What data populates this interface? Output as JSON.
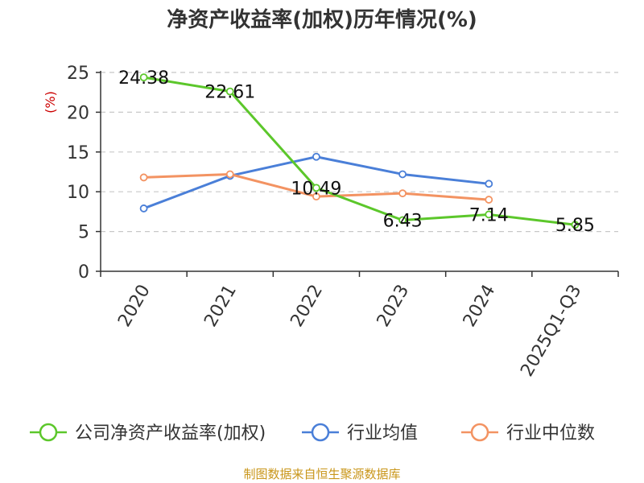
{
  "chart_data": {
    "type": "line",
    "title": "净资产收益率(加权)历年情况(%)",
    "ylabel": "(%)",
    "categories": [
      "2020",
      "2021",
      "2022",
      "2023",
      "2024",
      "2025Q1-Q3"
    ],
    "ylim": [
      0,
      25
    ],
    "yticks": [
      0,
      5,
      10,
      15,
      20,
      25
    ],
    "grid": true,
    "legend_position": "bottom",
    "series": [
      {
        "name": "公司净资产收益率(加权)",
        "color": "#5cc72b",
        "values": [
          24.38,
          22.61,
          10.49,
          6.43,
          7.14,
          5.85
        ],
        "labels": [
          "24.38",
          "22.61",
          "10.49",
          "6.43",
          "7.14",
          "5.85"
        ]
      },
      {
        "name": "行业均值",
        "color": "#4a7fd8",
        "values": [
          7.9,
          12.0,
          14.4,
          12.2,
          11.0,
          null
        ]
      },
      {
        "name": "行业中位数",
        "color": "#f39362",
        "values": [
          11.8,
          12.2,
          9.4,
          9.8,
          9.0,
          null
        ]
      }
    ]
  },
  "footer": {
    "source": "制图数据来自恒生聚源数据库"
  }
}
